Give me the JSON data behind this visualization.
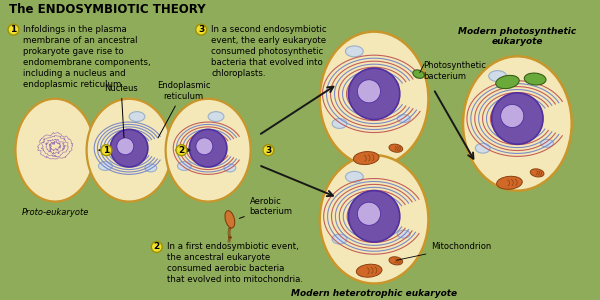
{
  "title": "The ENDOSYMBIOTIC THEORY",
  "bg_color": "#8fac5a",
  "text_color": "#000000",
  "annotation1_text": "Infoldings in the plasma\nmembrane of an ancestral\nprokaryote gave rise to\nendomembrane components,\nincluding a nucleus and\nendoplasmic reticulum.",
  "annotation2_text": "In a first endosymbiotic event,\nthe ancestral eukaryote\nconsumed aerobic bacteria\nthat evolved into mitochondria.",
  "annotation3_text": "In a second endosymbiotic\nevent, the early eukaryote\nconsumed photosynthetic\nbacteria that evolved into\nchloroplasts.",
  "label_proto": "Proto-eukaryote",
  "label_nucleus": "Nucleus",
  "label_er": "Endoplasmic\nreticulum",
  "label_aerobic": "Aerobic\nbacterium",
  "label_photo_bact": "Photosynthetic\nbacterium",
  "label_modern_hetero": "Modern heterotrophic eukaryote",
  "label_modern_photo": "Modern photosynthetic\neukaryote",
  "label_mitochondrion": "Mitochondrion",
  "cell_outer_color": "#f5e8b8",
  "cell_outer_edge": "#c8962a",
  "nucleus_color": "#7050a8",
  "nucleus_edge": "#5030a0",
  "nucleus_inner_color": "#c0a8e0",
  "er_color_blue": "#7080c8",
  "er_color_red": "#c05050",
  "vacuole_color": "#d0dce8",
  "vacuole_edge": "#9ab0c8",
  "mito_color": "#d06828",
  "mito_edge": "#8a4010",
  "chloro_color": "#6aaa3a",
  "chloro_edge": "#3a6018",
  "number_badge_color": "#f0e030",
  "number_badge_edge": "#a09000",
  "arrow_color": "#181818",
  "label_font_size": 6.0,
  "anno_font_size": 6.2,
  "title_font_size": 8.5
}
